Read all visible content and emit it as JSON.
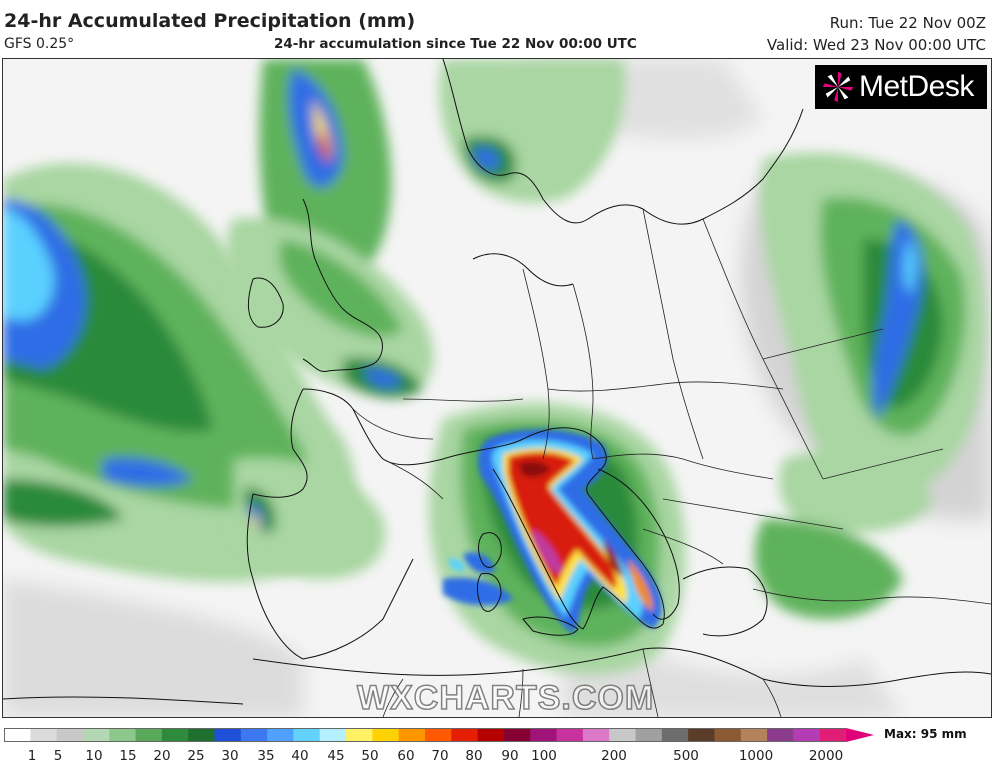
{
  "header": {
    "title": "24-hr Accumulated Precipitation (mm)",
    "model": "GFS 0.25°",
    "subtitle": "24-hr accumulation since Tue 22 Nov 00:00 UTC",
    "run": "Run: Tue 22 Nov 00Z",
    "valid": "Valid: Wed 23 Nov 00:00 UTC"
  },
  "logo": {
    "text": "MetDesk",
    "icon": "metdesk-starburst-icon"
  },
  "watermark": "WXCHARTS.COM",
  "legend": {
    "max_label": "Max: 95 mm",
    "ticks": [
      "1",
      "5",
      "10",
      "15",
      "20",
      "25",
      "30",
      "35",
      "40",
      "45",
      "50",
      "60",
      "70",
      "80",
      "90",
      "100",
      "200",
      "500",
      "1000",
      "2000"
    ],
    "colors": [
      "#ffffff",
      "#dcdcdc",
      "#c8c8c8",
      "#b4d8b4",
      "#8cc88c",
      "#5aa85a",
      "#2e8b3e",
      "#1f6f2e",
      "#1e50d8",
      "#3c78f0",
      "#50a0ff",
      "#64d2ff",
      "#b4f0ff",
      "#fff064",
      "#ffd200",
      "#ff9600",
      "#ff5a00",
      "#e61e00",
      "#b40000",
      "#870032",
      "#a0147a",
      "#c8329e",
      "#dc78c8",
      "#c8c8c8",
      "#a0a0a0",
      "#6e6e6e",
      "#5a3c28",
      "#8c5a32",
      "#b4825a",
      "#8c3c8c",
      "#b43cb4",
      "#e01e78"
    ]
  },
  "colors": {
    "land": "#f7f7f7",
    "light_green": "#a9d6a2",
    "mid_green": "#5fb25c",
    "dark_green": "#2a8a3a",
    "blue": "#2f6de6",
    "cyan": "#5ad0ff",
    "red": "#d81e10",
    "darkred": "#8a0a0a",
    "magenta": "#c03aa0",
    "orange": "#f08a10",
    "yellow": "#ffe040"
  }
}
